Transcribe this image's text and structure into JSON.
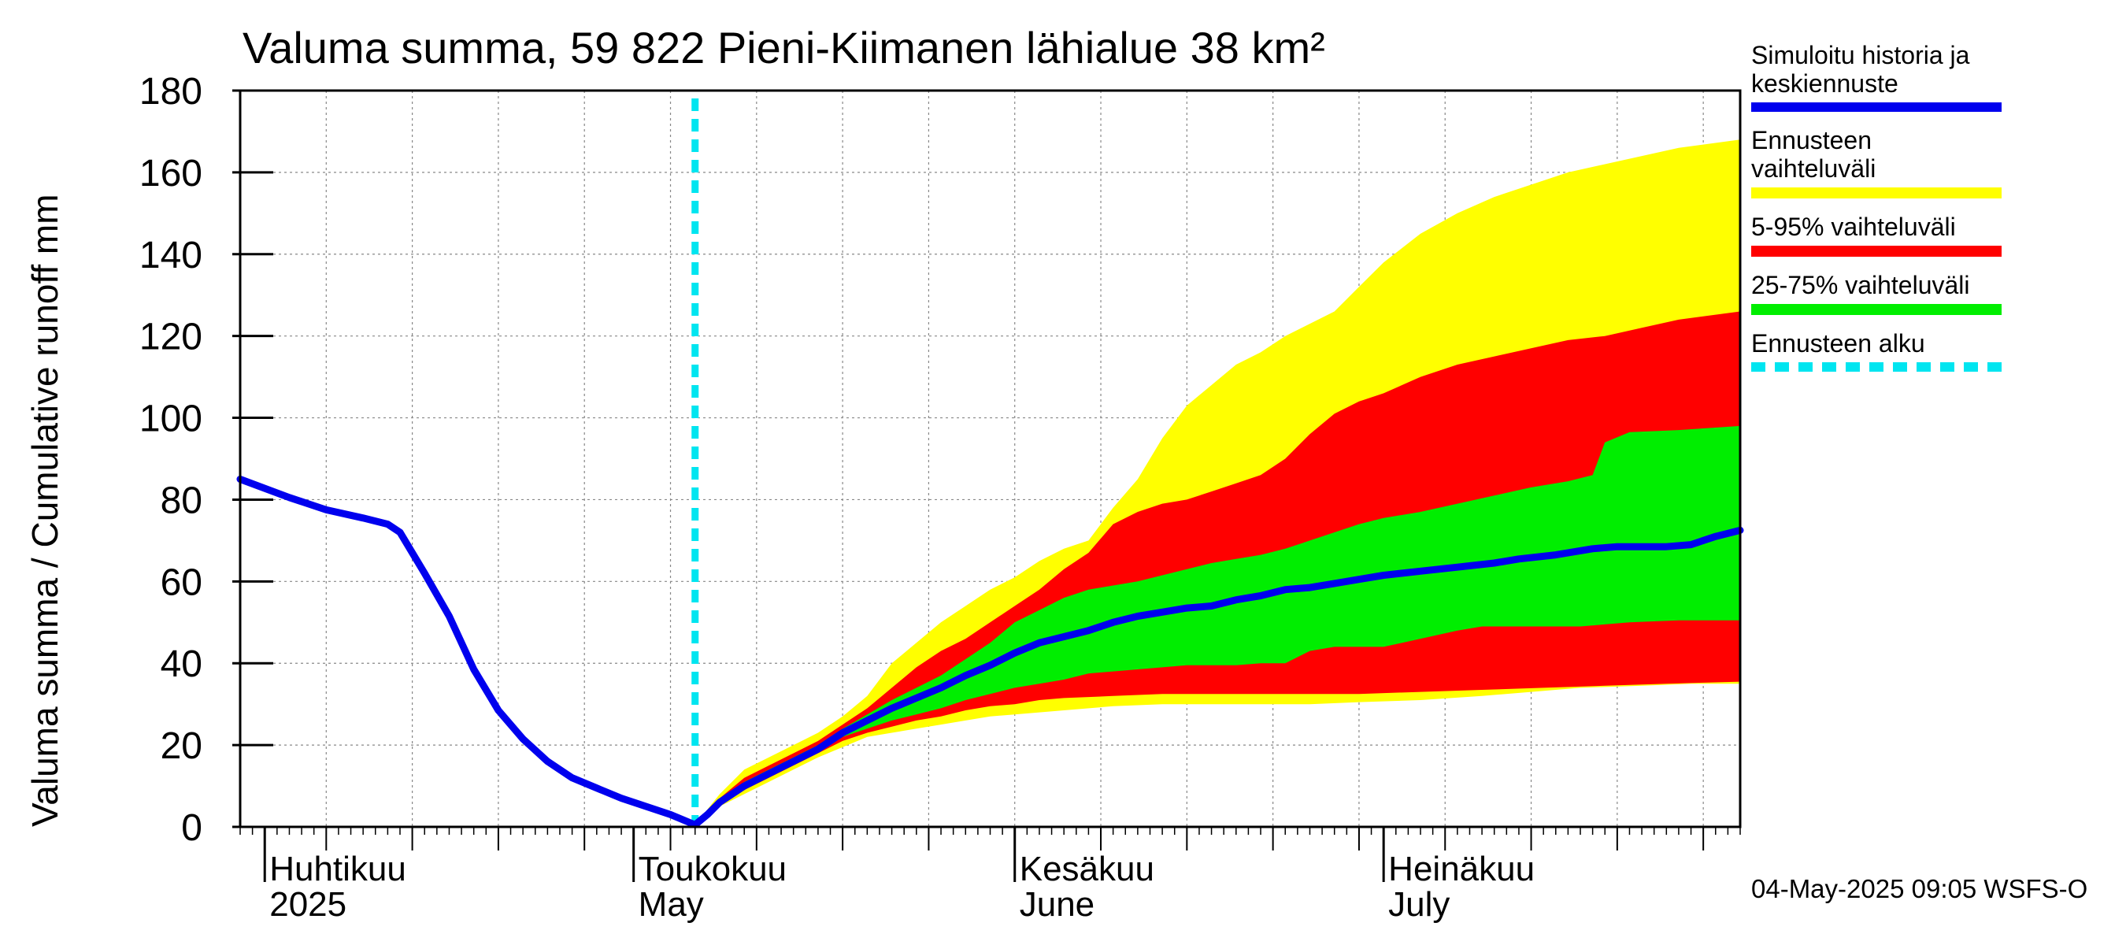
{
  "chart_data": {
    "type": "area",
    "title": "Valuma summa, 59 822 Pieni-Kiimanen lähialue 38 km²",
    "ylabel": "Valuma summa / Cumulative runoff     mm",
    "ylim": [
      0,
      180
    ],
    "yticks": [
      "0",
      "20",
      "40",
      "60",
      "80",
      "100",
      "120",
      "140",
      "160",
      "180"
    ],
    "grid": true,
    "x_range": [
      "2025-03-30",
      "2025-07-30"
    ],
    "month_labels": [
      {
        "date": "2025-04-01",
        "fi": "Huhtikuu",
        "en": "2025"
      },
      {
        "date": "2025-05-01",
        "fi": "Toukokuu",
        "en": "May"
      },
      {
        "date": "2025-06-01",
        "fi": "Kesäkuu",
        "en": "June"
      },
      {
        "date": "2025-07-01",
        "fi": "Heinäkuu",
        "en": "July"
      }
    ],
    "forecast_start": "2025-05-01",
    "series": [
      {
        "name": "Simuloitu historia ja keskiennuste",
        "color": "#0000ee",
        "points": [
          [
            "2025-03-30",
            85
          ],
          [
            "2025-04-03",
            80.5
          ],
          [
            "2025-04-06",
            77.5
          ],
          [
            "2025-04-09",
            75.5
          ],
          [
            "2025-04-11",
            74
          ],
          [
            "2025-04-12",
            72
          ],
          [
            "2025-04-14",
            62
          ],
          [
            "2025-04-16",
            51.5
          ],
          [
            "2025-04-18",
            38.5
          ],
          [
            "2025-04-20",
            28.5
          ],
          [
            "2025-04-22",
            21.5
          ],
          [
            "2025-04-24",
            16
          ],
          [
            "2025-04-26",
            12
          ],
          [
            "2025-04-28",
            9.5
          ],
          [
            "2025-04-30",
            7
          ],
          [
            "2025-05-02",
            5
          ],
          [
            "2025-05-04",
            3
          ],
          [
            "2025-05-06",
            0.5
          ],
          [
            "2025-05-07",
            3
          ],
          [
            "2025-05-08",
            6
          ],
          [
            "2025-05-10",
            10
          ],
          [
            "2025-05-12",
            13
          ],
          [
            "2025-05-14",
            16
          ],
          [
            "2025-05-16",
            19
          ],
          [
            "2025-05-18",
            23
          ],
          [
            "2025-05-20",
            26
          ],
          [
            "2025-05-22",
            29
          ],
          [
            "2025-05-24",
            31.5
          ],
          [
            "2025-05-26",
            34
          ],
          [
            "2025-05-28",
            37
          ],
          [
            "2025-05-30",
            39.5
          ],
          [
            "2025-06-01",
            42.5
          ],
          [
            "2025-06-03",
            45
          ],
          [
            "2025-06-05",
            46.5
          ],
          [
            "2025-06-07",
            48
          ],
          [
            "2025-06-09",
            50
          ],
          [
            "2025-06-11",
            51.5
          ],
          [
            "2025-06-13",
            52.5
          ],
          [
            "2025-06-15",
            53.5
          ],
          [
            "2025-06-17",
            54
          ],
          [
            "2025-06-19",
            55.5
          ],
          [
            "2025-06-21",
            56.5
          ],
          [
            "2025-06-23",
            58
          ],
          [
            "2025-06-25",
            58.5
          ],
          [
            "2025-06-27",
            59.5
          ],
          [
            "2025-06-29",
            60.5
          ],
          [
            "2025-07-01",
            61.5
          ],
          [
            "2025-07-04",
            62.5
          ],
          [
            "2025-07-07",
            63.5
          ],
          [
            "2025-07-10",
            64.5
          ],
          [
            "2025-07-12",
            65.5
          ],
          [
            "2025-07-15",
            66.5
          ],
          [
            "2025-07-18",
            68
          ],
          [
            "2025-07-20",
            68.5
          ],
          [
            "2025-07-24",
            68.5
          ],
          [
            "2025-07-26",
            69
          ],
          [
            "2025-07-28",
            71
          ],
          [
            "2025-07-30",
            72.5
          ]
        ]
      },
      {
        "name": "Ennusteen vaihteluväli",
        "color": "#ffff00",
        "upper": [
          [
            "2025-05-06",
            0.5
          ],
          [
            "2025-05-08",
            8
          ],
          [
            "2025-05-10",
            14
          ],
          [
            "2025-05-12",
            17
          ],
          [
            "2025-05-14",
            20
          ],
          [
            "2025-05-16",
            23
          ],
          [
            "2025-05-18",
            27
          ],
          [
            "2025-05-20",
            32
          ],
          [
            "2025-05-22",
            40
          ],
          [
            "2025-05-24",
            45
          ],
          [
            "2025-05-26",
            50
          ],
          [
            "2025-05-28",
            54
          ],
          [
            "2025-05-30",
            58
          ],
          [
            "2025-06-01",
            61
          ],
          [
            "2025-06-03",
            65
          ],
          [
            "2025-06-05",
            68
          ],
          [
            "2025-06-07",
            70
          ],
          [
            "2025-06-09",
            78
          ],
          [
            "2025-06-11",
            85
          ],
          [
            "2025-06-13",
            95
          ],
          [
            "2025-06-15",
            103
          ],
          [
            "2025-06-17",
            108
          ],
          [
            "2025-06-19",
            113
          ],
          [
            "2025-06-21",
            116
          ],
          [
            "2025-06-23",
            120
          ],
          [
            "2025-06-25",
            123
          ],
          [
            "2025-06-27",
            126
          ],
          [
            "2025-06-29",
            132
          ],
          [
            "2025-07-01",
            138
          ],
          [
            "2025-07-04",
            145
          ],
          [
            "2025-07-07",
            150
          ],
          [
            "2025-07-10",
            154
          ],
          [
            "2025-07-13",
            157
          ],
          [
            "2025-07-16",
            160
          ],
          [
            "2025-07-19",
            162
          ],
          [
            "2025-07-22",
            164
          ],
          [
            "2025-07-25",
            166
          ],
          [
            "2025-07-30",
            168
          ]
        ],
        "lower": [
          [
            "2025-05-06",
            0.5
          ],
          [
            "2025-05-08",
            5
          ],
          [
            "2025-05-10",
            8
          ],
          [
            "2025-05-12",
            11
          ],
          [
            "2025-05-14",
            14
          ],
          [
            "2025-05-16",
            17
          ],
          [
            "2025-05-18",
            19.5
          ],
          [
            "2025-05-20",
            22
          ],
          [
            "2025-05-22",
            23
          ],
          [
            "2025-05-24",
            24
          ],
          [
            "2025-05-26",
            25
          ],
          [
            "2025-05-28",
            26
          ],
          [
            "2025-05-30",
            27
          ],
          [
            "2025-06-01",
            27.5
          ],
          [
            "2025-06-05",
            28.5
          ],
          [
            "2025-06-09",
            29.5
          ],
          [
            "2025-06-13",
            30
          ],
          [
            "2025-06-17",
            30
          ],
          [
            "2025-06-21",
            30
          ],
          [
            "2025-06-25",
            30
          ],
          [
            "2025-06-29",
            30.5
          ],
          [
            "2025-07-04",
            31
          ],
          [
            "2025-07-09",
            32
          ],
          [
            "2025-07-13",
            33
          ],
          [
            "2025-07-17",
            34
          ],
          [
            "2025-07-22",
            34.5
          ],
          [
            "2025-07-26",
            35
          ],
          [
            "2025-07-30",
            35
          ]
        ]
      },
      {
        "name": "5-95% vaihteluväli",
        "color": "#ff0000",
        "upper": [
          [
            "2025-05-06",
            0.5
          ],
          [
            "2025-05-08",
            7
          ],
          [
            "2025-05-10",
            12
          ],
          [
            "2025-05-12",
            15
          ],
          [
            "2025-05-14",
            18
          ],
          [
            "2025-05-16",
            21
          ],
          [
            "2025-05-18",
            25
          ],
          [
            "2025-05-20",
            29
          ],
          [
            "2025-05-22",
            34
          ],
          [
            "2025-05-24",
            39
          ],
          [
            "2025-05-26",
            43
          ],
          [
            "2025-05-28",
            46
          ],
          [
            "2025-05-30",
            50
          ],
          [
            "2025-06-01",
            54
          ],
          [
            "2025-06-03",
            58
          ],
          [
            "2025-06-05",
            63
          ],
          [
            "2025-06-07",
            67
          ],
          [
            "2025-06-09",
            74
          ],
          [
            "2025-06-11",
            77
          ],
          [
            "2025-06-13",
            79
          ],
          [
            "2025-06-15",
            80
          ],
          [
            "2025-06-17",
            82
          ],
          [
            "2025-06-19",
            84
          ],
          [
            "2025-06-21",
            86
          ],
          [
            "2025-06-23",
            90
          ],
          [
            "2025-06-25",
            96
          ],
          [
            "2025-06-27",
            101
          ],
          [
            "2025-06-29",
            104
          ],
          [
            "2025-07-01",
            106
          ],
          [
            "2025-07-04",
            110
          ],
          [
            "2025-07-07",
            113
          ],
          [
            "2025-07-10",
            115
          ],
          [
            "2025-07-13",
            117
          ],
          [
            "2025-07-16",
            119
          ],
          [
            "2025-07-19",
            120
          ],
          [
            "2025-07-22",
            122
          ],
          [
            "2025-07-25",
            124
          ],
          [
            "2025-07-30",
            126
          ]
        ],
        "lower": [
          [
            "2025-05-06",
            0.5
          ],
          [
            "2025-05-08",
            5.5
          ],
          [
            "2025-05-10",
            9
          ],
          [
            "2025-05-12",
            12
          ],
          [
            "2025-05-14",
            15
          ],
          [
            "2025-05-16",
            18
          ],
          [
            "2025-05-18",
            21
          ],
          [
            "2025-05-20",
            23
          ],
          [
            "2025-05-22",
            24.5
          ],
          [
            "2025-05-24",
            26
          ],
          [
            "2025-05-26",
            27
          ],
          [
            "2025-05-28",
            28.5
          ],
          [
            "2025-05-30",
            29.5
          ],
          [
            "2025-06-01",
            30
          ],
          [
            "2025-06-03",
            31
          ],
          [
            "2025-06-05",
            31.5
          ],
          [
            "2025-06-09",
            32
          ],
          [
            "2025-06-13",
            32.5
          ],
          [
            "2025-06-17",
            32.5
          ],
          [
            "2025-06-21",
            32.5
          ],
          [
            "2025-06-25",
            32.5
          ],
          [
            "2025-06-29",
            32.5
          ],
          [
            "2025-07-04",
            33
          ],
          [
            "2025-07-09",
            33.5
          ],
          [
            "2025-07-14",
            34
          ],
          [
            "2025-07-19",
            34.5
          ],
          [
            "2025-07-24",
            35
          ],
          [
            "2025-07-30",
            35.5
          ]
        ]
      },
      {
        "name": "25-75% vaihteluväli",
        "color": "#00ee00",
        "upper": [
          [
            "2025-05-06",
            0.5
          ],
          [
            "2025-05-08",
            6.5
          ],
          [
            "2025-05-10",
            11
          ],
          [
            "2025-05-12",
            14
          ],
          [
            "2025-05-14",
            17
          ],
          [
            "2025-05-16",
            20
          ],
          [
            "2025-05-18",
            24
          ],
          [
            "2025-05-20",
            27.5
          ],
          [
            "2025-05-22",
            31
          ],
          [
            "2025-05-24",
            34
          ],
          [
            "2025-05-26",
            37
          ],
          [
            "2025-05-28",
            41
          ],
          [
            "2025-05-30",
            45
          ],
          [
            "2025-06-01",
            50
          ],
          [
            "2025-06-03",
            53
          ],
          [
            "2025-06-05",
            56
          ],
          [
            "2025-06-07",
            58
          ],
          [
            "2025-06-09",
            59
          ],
          [
            "2025-06-11",
            60
          ],
          [
            "2025-06-13",
            61.5
          ],
          [
            "2025-06-15",
            63
          ],
          [
            "2025-06-17",
            64.5
          ],
          [
            "2025-06-19",
            65.5
          ],
          [
            "2025-06-21",
            66.5
          ],
          [
            "2025-06-23",
            68
          ],
          [
            "2025-06-25",
            70
          ],
          [
            "2025-06-27",
            72
          ],
          [
            "2025-06-29",
            74
          ],
          [
            "2025-07-01",
            75.5
          ],
          [
            "2025-07-04",
            77
          ],
          [
            "2025-07-07",
            79
          ],
          [
            "2025-07-10",
            81
          ],
          [
            "2025-07-13",
            83
          ],
          [
            "2025-07-16",
            84.5
          ],
          [
            "2025-07-18",
            86
          ],
          [
            "2025-07-19",
            94
          ],
          [
            "2025-07-21",
            96.5
          ],
          [
            "2025-07-25",
            97
          ],
          [
            "2025-07-30",
            98
          ]
        ],
        "lower": [
          [
            "2025-05-06",
            0.5
          ],
          [
            "2025-05-08",
            6
          ],
          [
            "2025-05-10",
            10
          ],
          [
            "2025-05-12",
            13
          ],
          [
            "2025-05-14",
            16
          ],
          [
            "2025-05-16",
            19
          ],
          [
            "2025-05-18",
            22
          ],
          [
            "2025-05-20",
            24
          ],
          [
            "2025-05-22",
            26
          ],
          [
            "2025-05-24",
            27.5
          ],
          [
            "2025-05-26",
            29
          ],
          [
            "2025-05-28",
            31
          ],
          [
            "2025-05-30",
            32.5
          ],
          [
            "2025-06-01",
            34
          ],
          [
            "2025-06-03",
            35
          ],
          [
            "2025-06-05",
            36
          ],
          [
            "2025-06-07",
            37.5
          ],
          [
            "2025-06-09",
            38
          ],
          [
            "2025-06-11",
            38.5
          ],
          [
            "2025-06-13",
            39
          ],
          [
            "2025-06-15",
            39.5
          ],
          [
            "2025-06-17",
            39.5
          ],
          [
            "2025-06-19",
            39.5
          ],
          [
            "2025-06-21",
            40
          ],
          [
            "2025-06-23",
            40
          ],
          [
            "2025-06-25",
            43
          ],
          [
            "2025-06-27",
            44
          ],
          [
            "2025-06-29",
            44
          ],
          [
            "2025-07-01",
            44
          ],
          [
            "2025-07-04",
            46
          ],
          [
            "2025-07-07",
            48
          ],
          [
            "2025-07-09",
            49
          ],
          [
            "2025-07-13",
            49
          ],
          [
            "2025-07-17",
            49
          ],
          [
            "2025-07-21",
            50
          ],
          [
            "2025-07-25",
            50.5
          ],
          [
            "2025-07-30",
            50.5
          ]
        ]
      }
    ],
    "legend": [
      {
        "label": "Simuloitu historia ja keskiennuste",
        "color": "#0000ee",
        "style": "line"
      },
      {
        "label": "Ennusteen vaihteluväli",
        "color": "#ffff00",
        "style": "band"
      },
      {
        "label": "5-95% vaihteluväli",
        "color": "#ff0000",
        "style": "band"
      },
      {
        "label": "25-75% vaihteluväli",
        "color": "#00ee00",
        "style": "band"
      },
      {
        "label": "Ennusteen alku",
        "color": "#00e5f0",
        "style": "dashed"
      }
    ],
    "legend_position": "right",
    "footer": "04-May-2025 09:05 WSFS-O"
  }
}
